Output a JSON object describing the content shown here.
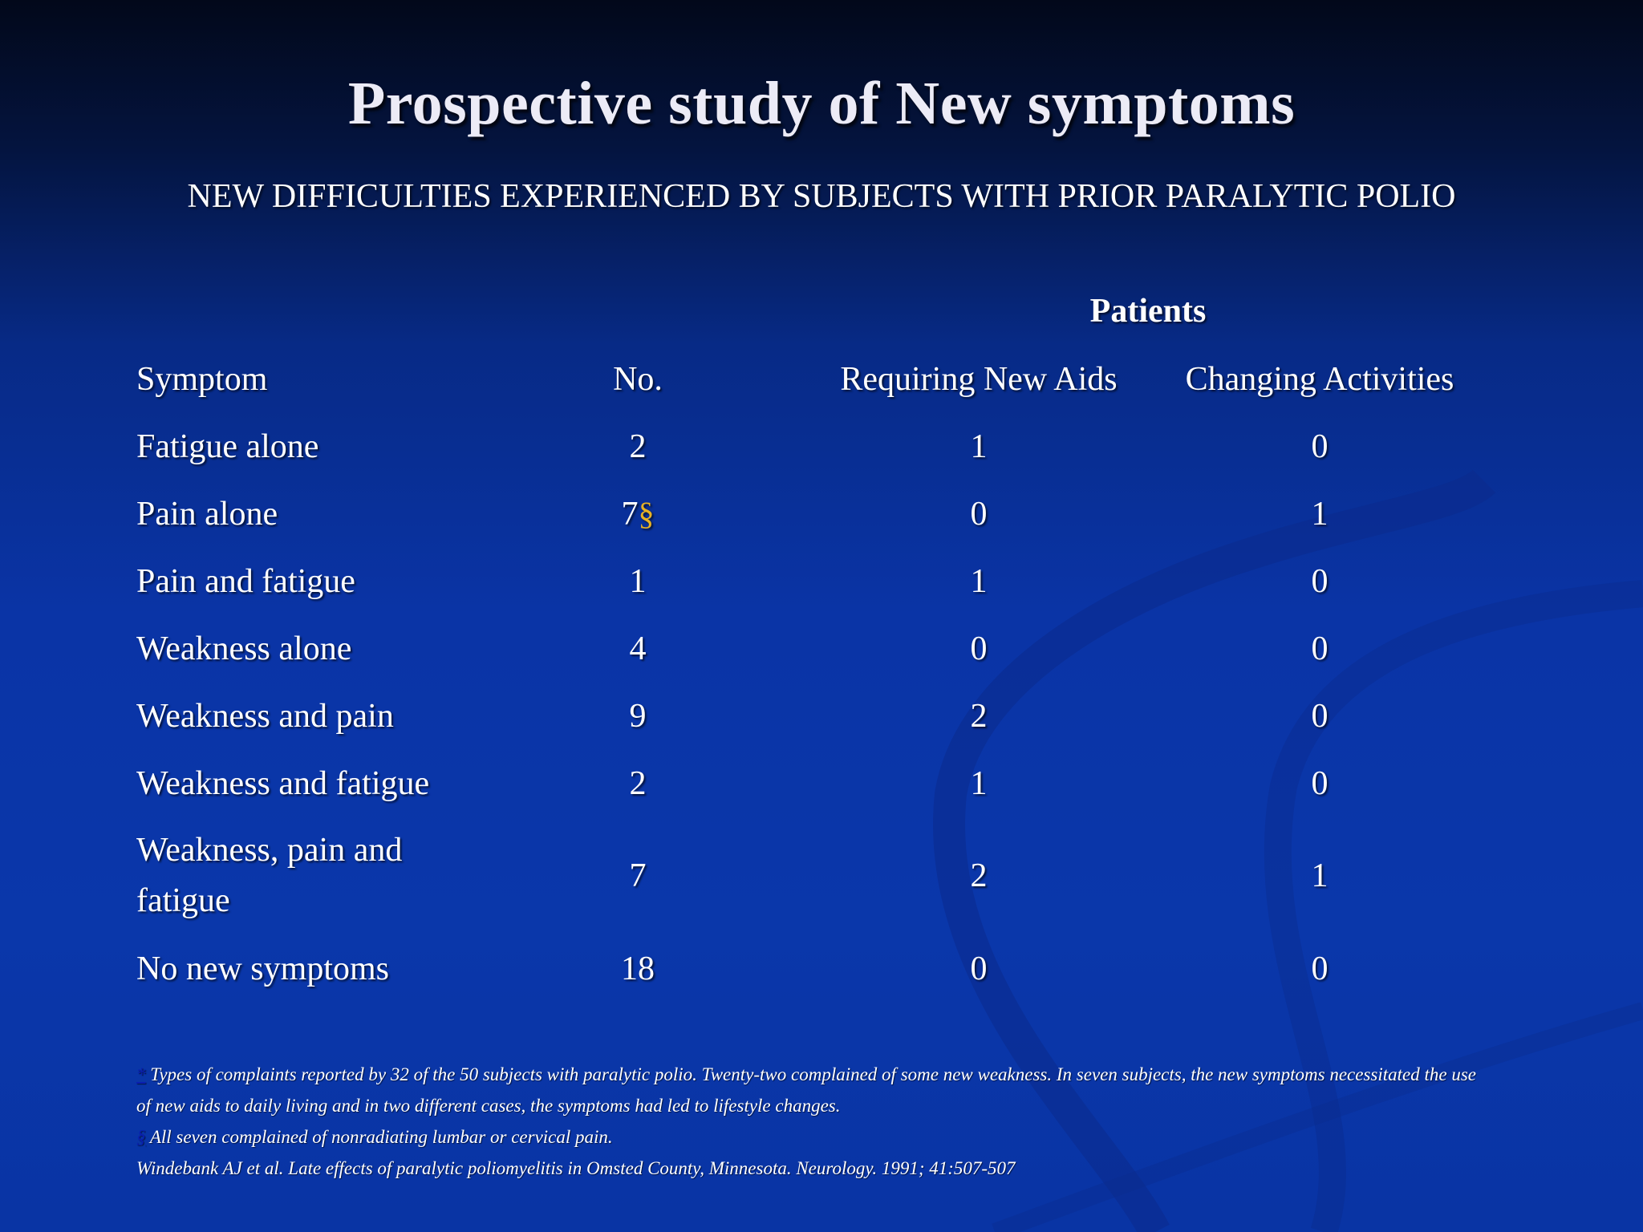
{
  "slide": {
    "title": "Prospective study of New symptoms",
    "subtitle": "NEW DIFFICULTIES EXPERIENCED BY SUBJECTS WITH PRIOR PARALYTIC POLIO"
  },
  "table": {
    "group_header": "Patients",
    "headers": {
      "symptom": "Symptom",
      "no": "No.",
      "requiring_new_aids": "Requiring New Aids",
      "changing_activities": "Changing Activities"
    },
    "rows": [
      {
        "symptom": "Fatigue alone",
        "no": "2",
        "marker": "",
        "aids": "1",
        "activities": "0"
      },
      {
        "symptom": "Pain alone",
        "no": "7",
        "marker": "§",
        "aids": "0",
        "activities": "1"
      },
      {
        "symptom": "Pain and fatigue",
        "no": "1",
        "marker": "",
        "aids": "1",
        "activities": "0"
      },
      {
        "symptom": "Weakness alone",
        "no": "4",
        "marker": "",
        "aids": "0",
        "activities": "0"
      },
      {
        "symptom": "Weakness and pain",
        "no": "9",
        "marker": "",
        "aids": "2",
        "activities": "0"
      },
      {
        "symptom": "Weakness and fatigue",
        "no": "2",
        "marker": "",
        "aids": "1",
        "activities": "0"
      },
      {
        "symptom": "Weakness, pain and fatigue",
        "no": "7",
        "marker": "",
        "aids": "2",
        "activities": "1"
      },
      {
        "symptom": "No new symptoms",
        "no": "18",
        "marker": "",
        "aids": "0",
        "activities": "0"
      }
    ]
  },
  "footnotes": {
    "note1_marker": "*",
    "note1_text": " Types of complaints reported by 32 of the 50 subjects with paralytic polio. Twenty-two complained of some new weakness. In seven subjects, the new symptoms necessitated the use of new aids to daily living and in two different cases, the symptoms had led to lifestyle changes.",
    "note2_marker": "§",
    "note2_text": " All seven complained of nonradiating lumbar or cervical pain.",
    "citation": "Windebank AJ et al. Late effects of paralytic poliomyelitis in Omsted County, Minnesota. Neurology. 1991; 41:507-507"
  },
  "colors": {
    "background_top": "#02081a",
    "background_main": "#0a37aa",
    "marker_gold": "#e8b324",
    "footnote_marker": "#0a1eb0"
  }
}
